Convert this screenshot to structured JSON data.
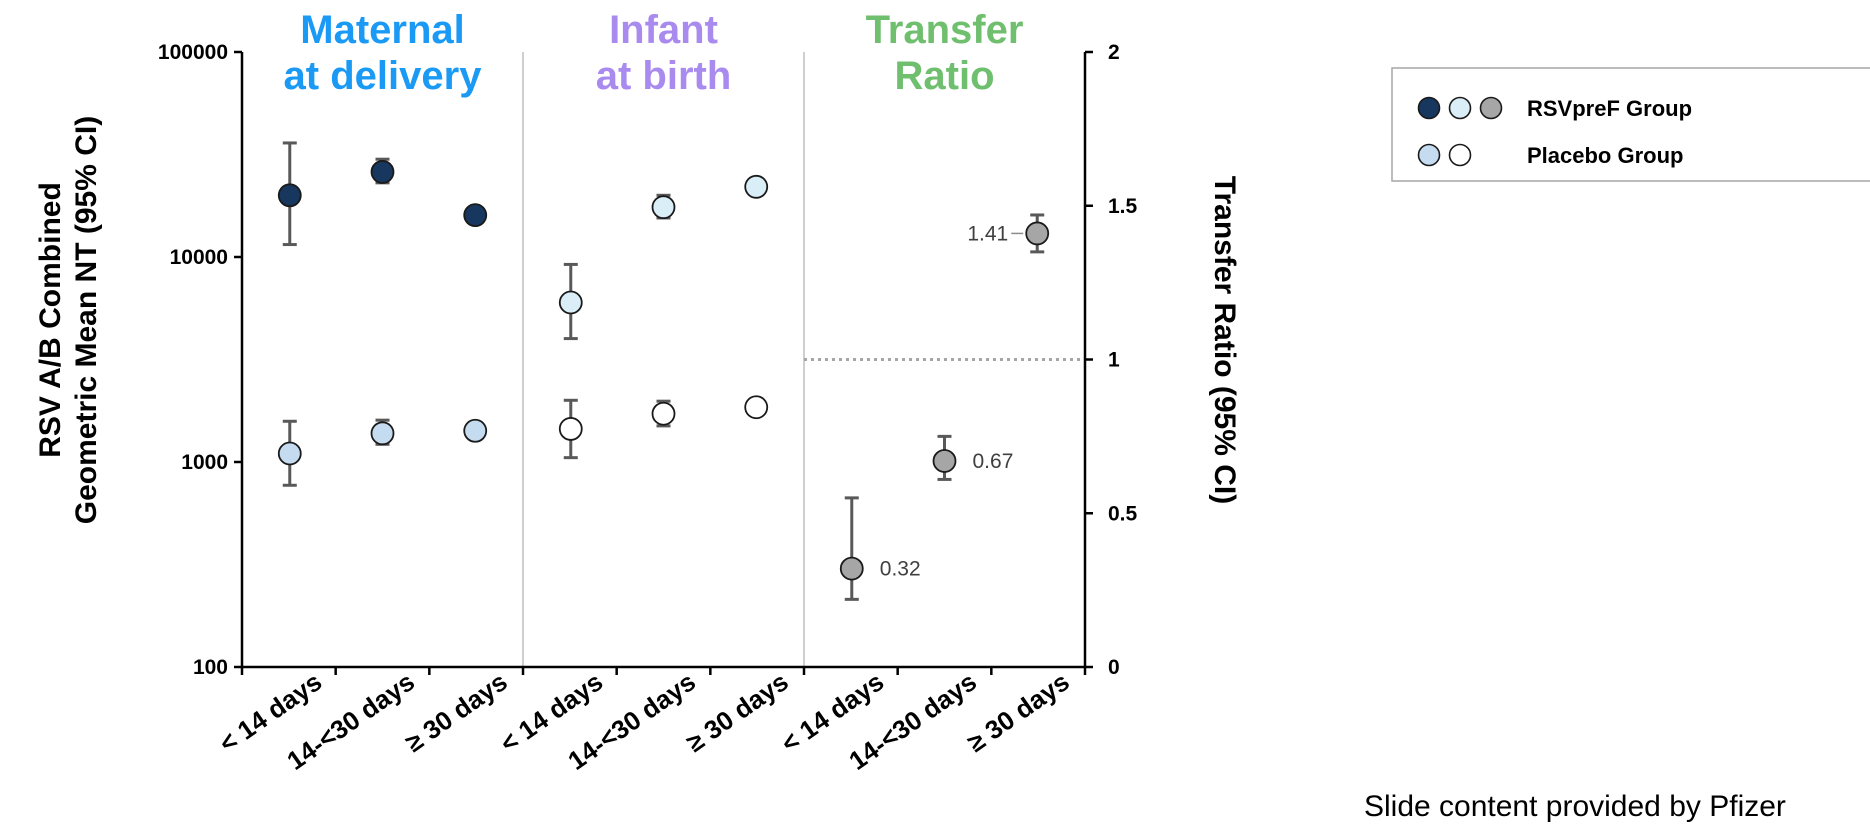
{
  "chart_data": {
    "type": "scatter",
    "left_axis": {
      "title_lines": [
        "RSV A/B Combined",
        "Geometric Mean NT (95% CI)"
      ],
      "scale": "log",
      "range": [
        100,
        100000
      ],
      "ticks": [
        100,
        1000,
        10000,
        100000
      ],
      "tick_labels": [
        "100",
        "1000",
        "10000",
        "100000"
      ]
    },
    "right_axis": {
      "title": "Transfer Ratio (95% CI)",
      "scale": "linear",
      "range": [
        0,
        2
      ],
      "ticks": [
        0,
        0.5,
        1,
        1.5,
        2
      ],
      "tick_labels": [
        "0",
        "0.5",
        "1",
        "1.5",
        "2"
      ]
    },
    "panels": [
      {
        "title_lines": [
          "Maternal",
          "at delivery"
        ],
        "color": "#1a9af5"
      },
      {
        "title_lines": [
          "Infant",
          "at birth"
        ],
        "color": "#a98aef"
      },
      {
        "title_lines": [
          "Transfer",
          "Ratio"
        ],
        "color": "#6fbf6f"
      }
    ],
    "categories": [
      "< 14 days",
      "14-<30 days",
      "≥ 30 days",
      "< 14 days",
      "14-<30 days",
      "≥ 30 days",
      "< 14 days",
      "14-<30 days",
      "≥ 30 days"
    ],
    "series": [
      {
        "name": "RSVpreF Group",
        "panel": 0,
        "axis": "left",
        "fill": "#17375e",
        "points": [
          {
            "cat": 0,
            "y": 20000,
            "lo": 11500,
            "hi": 36000
          },
          {
            "cat": 1,
            "y": 26000,
            "lo": 23000,
            "hi": 30000
          },
          {
            "cat": 2,
            "y": 16000,
            "lo": null,
            "hi": null
          }
        ]
      },
      {
        "name": "RSVpreF Group",
        "panel": 1,
        "axis": "left",
        "fill": "#daeef8",
        "points": [
          {
            "cat": 3,
            "y": 6000,
            "lo": 4000,
            "hi": 9200
          },
          {
            "cat": 4,
            "y": 17500,
            "lo": 15500,
            "hi": 20000
          },
          {
            "cat": 5,
            "y": 22000,
            "lo": null,
            "hi": null
          }
        ]
      },
      {
        "name": "RSVpreF Group",
        "panel": 2,
        "axis": "right",
        "fill": "#a6a6a6",
        "points": [
          {
            "cat": 6,
            "y": 0.32,
            "lo": 0.22,
            "hi": 0.55,
            "label": "0.32"
          },
          {
            "cat": 7,
            "y": 0.67,
            "lo": 0.61,
            "hi": 0.75,
            "label": "0.67"
          },
          {
            "cat": 8,
            "y": 1.41,
            "lo": 1.35,
            "hi": 1.47,
            "label": "1.41"
          }
        ]
      },
      {
        "name": "Placebo Group",
        "panel": 0,
        "axis": "left",
        "fill": "#c5dcf0",
        "points": [
          {
            "cat": 0,
            "y": 1100,
            "lo": 770,
            "hi": 1580
          },
          {
            "cat": 1,
            "y": 1380,
            "lo": 1220,
            "hi": 1600
          },
          {
            "cat": 2,
            "y": 1420,
            "lo": null,
            "hi": null
          }
        ]
      },
      {
        "name": "Placebo Group",
        "panel": 1,
        "axis": "left",
        "fill": "#ffffff",
        "points": [
          {
            "cat": 3,
            "y": 1450,
            "lo": 1050,
            "hi": 2000
          },
          {
            "cat": 4,
            "y": 1720,
            "lo": 1500,
            "hi": 1980
          },
          {
            "cat": 5,
            "y": 1850,
            "lo": null,
            "hi": null
          }
        ]
      }
    ],
    "reference_line": {
      "axis": "right",
      "y": 1,
      "style": "dotted",
      "panel": 2
    },
    "legend": {
      "placement": "top-right",
      "entries": [
        {
          "label": "RSVpreF   Group",
          "markers": [
            "#17375e",
            "#daeef8",
            "#a6a6a6"
          ]
        },
        {
          "label": "Placebo Group",
          "markers": [
            "#c5dcf0",
            "#ffffff"
          ]
        }
      ]
    },
    "grid": false
  },
  "footer": {
    "text": "Slide content provided by Pfizer"
  }
}
